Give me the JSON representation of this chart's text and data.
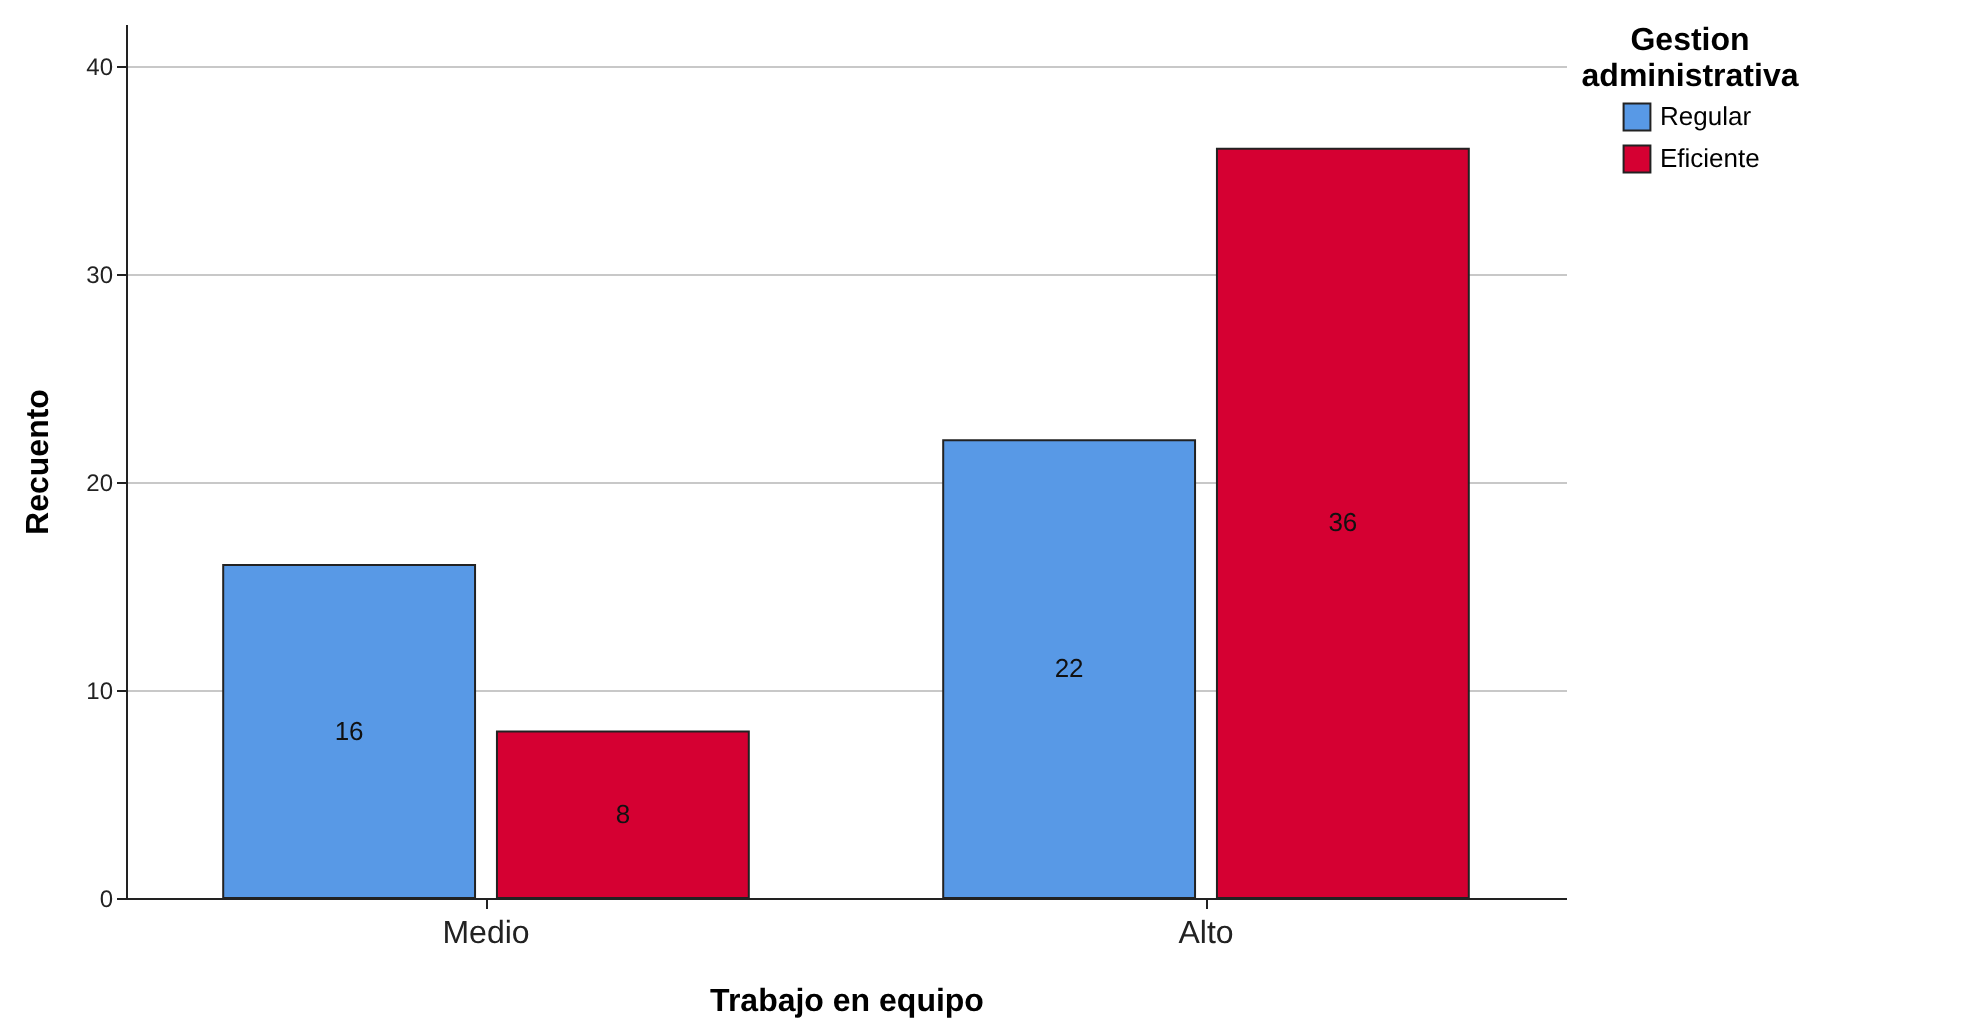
{
  "chart_data": {
    "type": "bar",
    "xlabel": "Trabajo en equipo",
    "ylabel": "Recuento",
    "legend_title": "Gestion administrativa",
    "categories": [
      "Medio",
      "Alto"
    ],
    "series": [
      {
        "name": "Regular",
        "color": "#5899e6",
        "values": [
          16,
          22
        ]
      },
      {
        "name": "Eficiente",
        "color": "#d50032",
        "values": [
          8,
          36
        ]
      }
    ],
    "ylim": [
      0,
      42
    ],
    "yticks": [
      0,
      10,
      20,
      30,
      40
    ],
    "grid": "y",
    "legend": "top right",
    "data_labels": true
  }
}
